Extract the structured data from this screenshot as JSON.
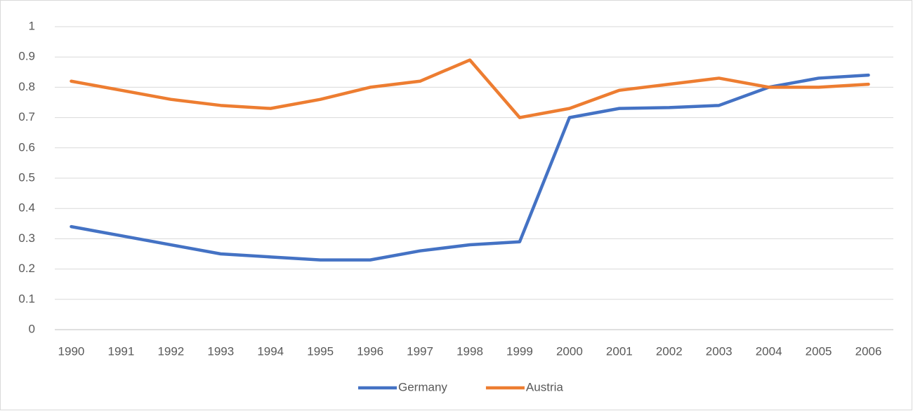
{
  "chart_data": {
    "type": "line",
    "categories": [
      "1990",
      "1991",
      "1992",
      "1993",
      "1994",
      "1995",
      "1996",
      "1997",
      "1998",
      "1999",
      "2000",
      "2001",
      "2002",
      "2003",
      "2004",
      "2005",
      "2006"
    ],
    "series": [
      {
        "name": "Germany",
        "color": "#4472c4",
        "values": [
          0.34,
          0.31,
          0.28,
          0.25,
          0.24,
          0.23,
          0.23,
          0.26,
          0.28,
          0.29,
          0.7,
          0.73,
          0.733,
          0.74,
          0.8,
          0.83,
          0.84
        ]
      },
      {
        "name": "Austria",
        "color": "#ed7d31",
        "values": [
          0.82,
          0.79,
          0.76,
          0.74,
          0.73,
          0.76,
          0.8,
          0.82,
          0.89,
          0.7,
          0.73,
          0.79,
          0.81,
          0.83,
          0.8,
          0.8,
          0.81
        ]
      }
    ],
    "ylim": [
      0,
      1
    ],
    "yticks": [
      0,
      0.1,
      0.2,
      0.3,
      0.4,
      0.5,
      0.6,
      0.7,
      0.8,
      0.9,
      1
    ],
    "grid": true,
    "legend": "bottom"
  }
}
